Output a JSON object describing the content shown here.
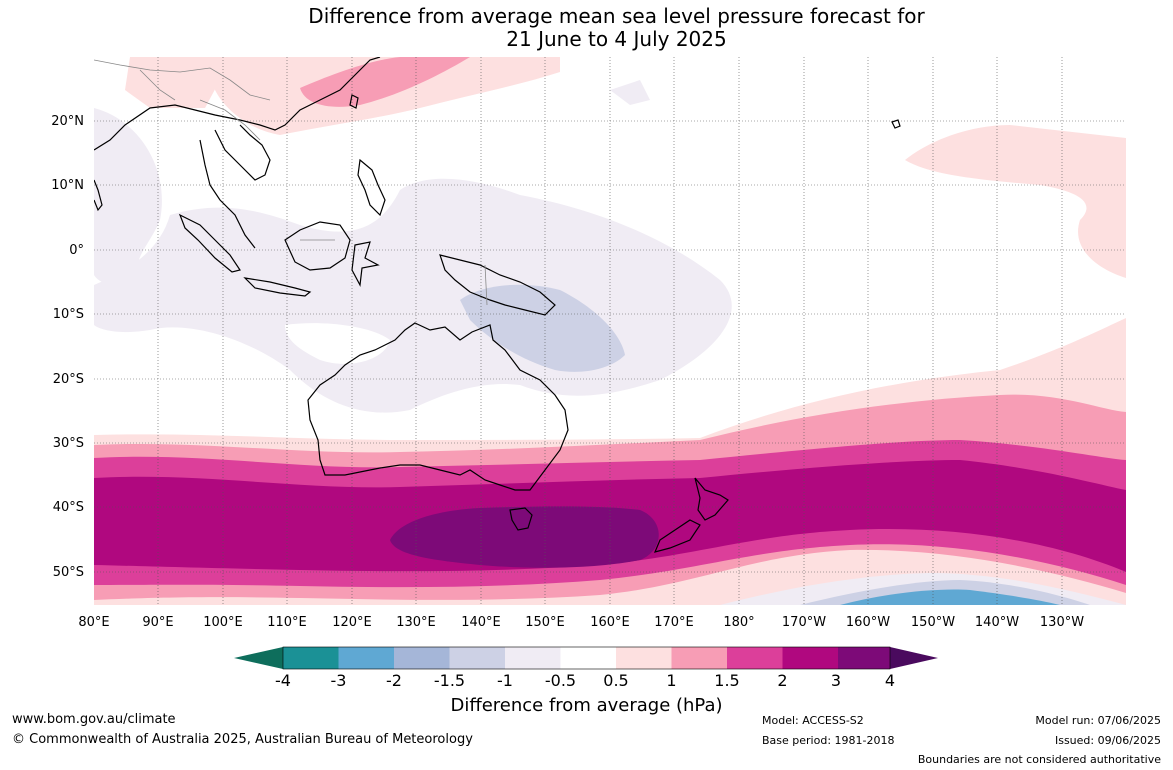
{
  "title_line1": "Difference from average mean sea level pressure forecast for",
  "title_line2": "21 June to 4 July 2025",
  "lat_labels": [
    "20°N",
    "10°N",
    "0°",
    "10°S",
    "20°S",
    "30°S",
    "40°S",
    "50°S"
  ],
  "lon_labels": [
    "80°E",
    "90°E",
    "100°E",
    "110°E",
    "120°E",
    "130°E",
    "140°E",
    "150°E",
    "160°E",
    "170°E",
    "180°",
    "170°W",
    "160°W",
    "150°W",
    "140°W",
    "130°W"
  ],
  "colorbar": {
    "title": "Difference from average (hPa)",
    "tick_labels": [
      "-4",
      "-3",
      "-2",
      "-1.5",
      "-1",
      "-0.5",
      "0.5",
      "1",
      "1.5",
      "2",
      "3",
      "4"
    ],
    "colors": [
      "#0e6e5c",
      "#1b9196",
      "#5fa8d3",
      "#a5b6d8",
      "#cdd1e5",
      "#f0ecf4",
      "#ffffff",
      "#fde0e0",
      "#f79db5",
      "#dc3f9a",
      "#b0087f",
      "#7d0a78",
      "#4a0a5e"
    ]
  },
  "footer": {
    "website": "www.bom.gov.au/climate",
    "copyright": "© Commonwealth of Australia 2025, Australian Bureau of Meteorology",
    "model": "Model: ACCESS-S2",
    "base_period": "Base period: 1981-2018",
    "model_run": "Model run: 07/06/2025",
    "issued": "Issued: 09/06/2025",
    "disclaimer": "Boundaries are not considered authoritative"
  }
}
